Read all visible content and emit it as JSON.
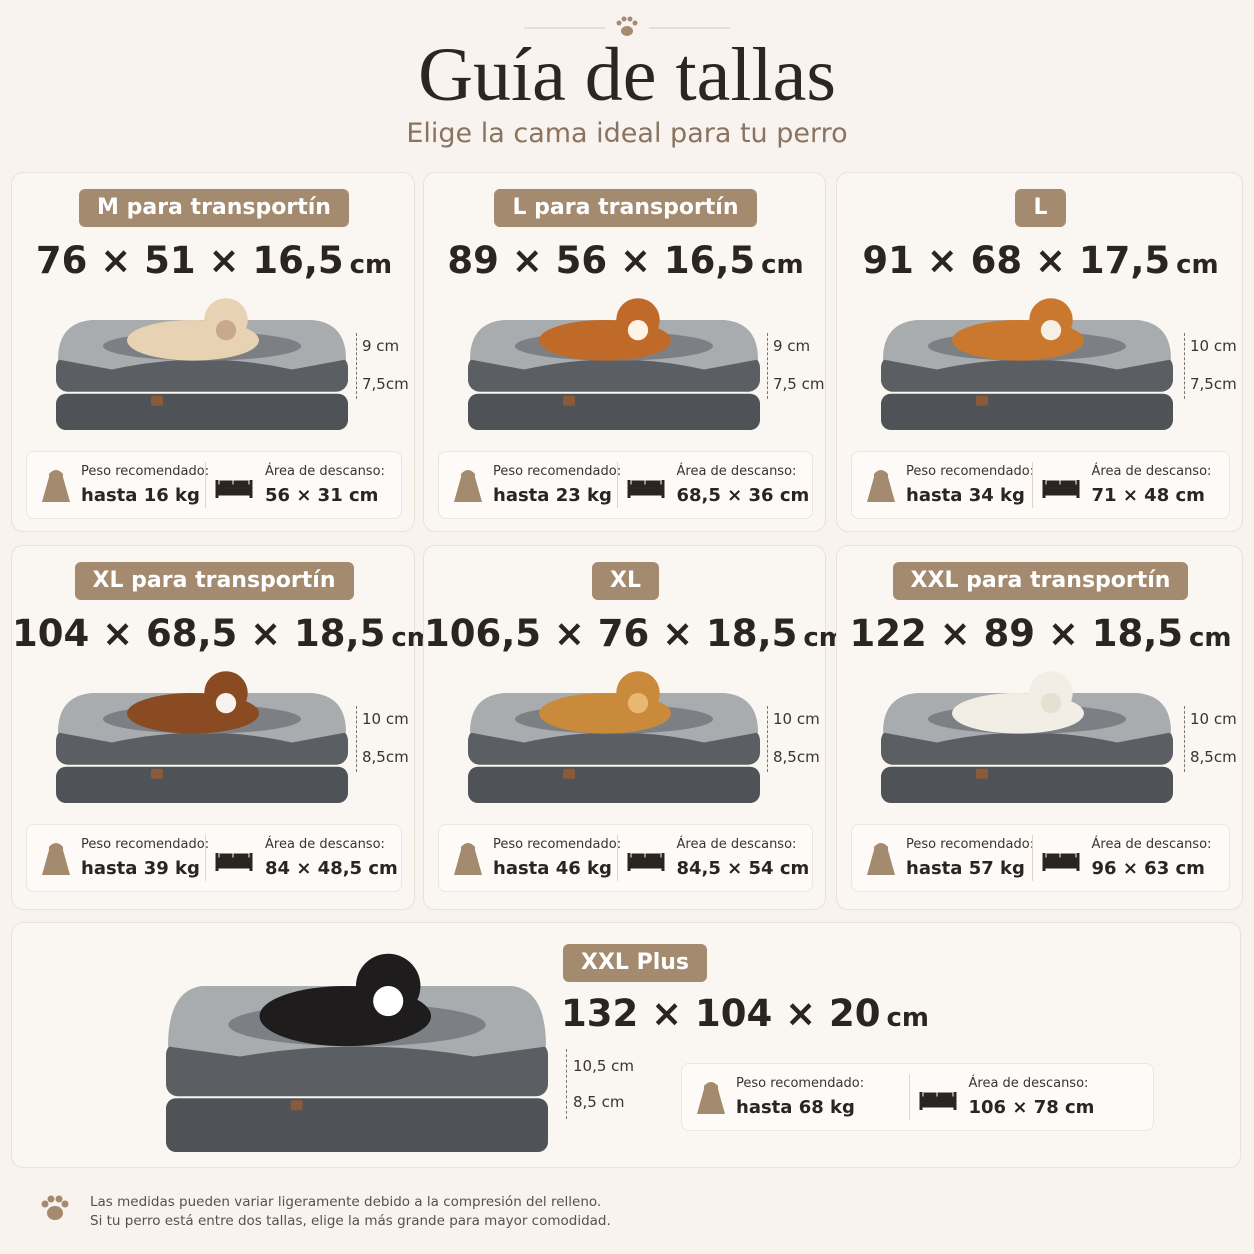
{
  "header": {
    "title": "Guía de tallas",
    "subtitle": "Elige la cama ideal para tu perro"
  },
  "cards": [
    {
      "badge": "M para transportín",
      "dims": "76 × 51 × 16,5",
      "unit": "cm",
      "heights": [
        "9 cm",
        "7,5cm"
      ],
      "weight_label": "Peso recomendado:",
      "weight": "hasta 16 kg",
      "area_label": "Área de descanso:",
      "area": "56 × 31 cm"
    },
    {
      "badge": "L para transportín",
      "dims": "89 × 56 × 16,5",
      "unit": "cm",
      "heights": [
        "9 cm",
        "7,5 cm"
      ],
      "weight_label": "Peso recomendado:",
      "weight": "hasta 23 kg",
      "area_label": "Área de descanso:",
      "area": "68,5 × 36 cm"
    },
    {
      "badge": "L",
      "dims": "91 × 68 × 17,5",
      "unit": "cm",
      "heights": [
        "10 cm",
        "7,5cm"
      ],
      "weight_label": "Peso recomendado:",
      "weight": "hasta 34 kg",
      "area_label": "Área de descanso:",
      "area": "71 × 48 cm"
    },
    {
      "badge": "XL para transportín",
      "dims": "104 × 68,5 × 18,5",
      "unit": "cm",
      "heights": [
        "10 cm",
        "8,5cm"
      ],
      "weight_label": "Peso recomendado:",
      "weight": "hasta 39 kg",
      "area_label": "Área de descanso:",
      "area": "84 × 48,5 cm"
    },
    {
      "badge": "XL",
      "dims": "106,5 × 76 × 18,5",
      "unit": "cm",
      "heights": [
        "10 cm",
        "8,5cm"
      ],
      "weight_label": "Peso recomendado:",
      "weight": "hasta 46 kg",
      "area_label": "Área de descanso:",
      "area": "84,5 × 54 cm"
    },
    {
      "badge": "XXL para transportín",
      "dims": "122 × 89 × 18,5",
      "unit": "cm",
      "heights": [
        "10 cm",
        "8,5cm"
      ],
      "weight_label": "Peso recomendado:",
      "weight": "hasta 57 kg",
      "area_label": "Área de descanso:",
      "area": "96 × 63 cm"
    },
    {
      "badge": "XXL Plus",
      "dims": "132 × 104 × 20",
      "unit": "cm",
      "heights": [
        "10,5 cm",
        "8,5 cm"
      ],
      "weight_label": "Peso recomendado:",
      "weight": "hasta 68 kg",
      "area_label": "Área de descanso:",
      "area": "106 × 78 cm"
    }
  ],
  "footer": {
    "lines": [
      "Las medidas pueden variar ligeramente debido a la compresión del relleno.",
      "Si tu perro está entre dos tallas, elige la más grande para mayor comodidad."
    ]
  }
}
